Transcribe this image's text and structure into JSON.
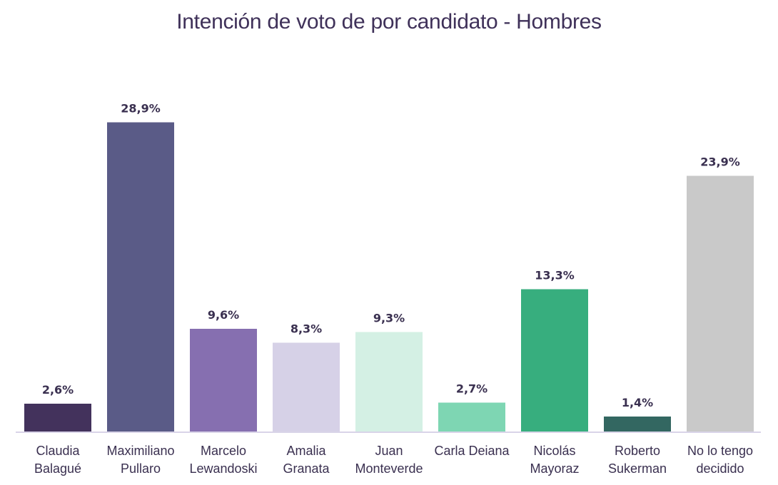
{
  "chart_data": {
    "type": "bar",
    "title": "Intención de voto de por candidato - Hombres",
    "xlabel": "",
    "ylabel": "",
    "ylim": [
      0,
      30
    ],
    "grid": false,
    "legend": "none",
    "categories": [
      [
        "Claudia",
        "Balagué"
      ],
      [
        "Maximiliano",
        "Pullaro"
      ],
      [
        "Marcelo",
        "Lewandoski"
      ],
      [
        "Amalia",
        "Granata"
      ],
      [
        "Juan",
        "Monteverde"
      ],
      [
        "Carla Deiana"
      ],
      [
        "Nicolás",
        "Mayoraz"
      ],
      [
        "Roberto",
        "Sukerman"
      ],
      [
        "No lo tengo",
        "decidido"
      ]
    ],
    "values": [
      2.6,
      28.9,
      9.6,
      8.3,
      9.3,
      2.7,
      13.3,
      1.4,
      23.9
    ],
    "labels": [
      "2,6%",
      "28,9%",
      "9,6%",
      "8,3%",
      "9,3%",
      "2,7%",
      "13,3%",
      "1,4%",
      "23,9%"
    ],
    "colors": [
      "#43325c",
      "#5a5b87",
      "#866fb0",
      "#d6d1e7",
      "#d4f0e4",
      "#7ed6b3",
      "#37ae7e",
      "#336761",
      "#c9c9c9"
    ],
    "axis_color": "#d9d4e8"
  }
}
